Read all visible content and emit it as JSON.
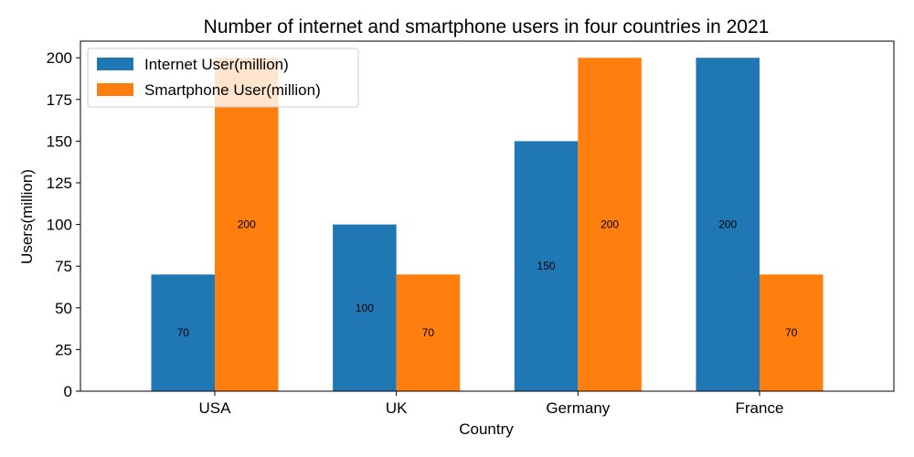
{
  "chart_data": {
    "type": "bar",
    "title": "Number of internet and smartphone users in four countries in 2021",
    "xlabel": "Country",
    "ylabel": "Users(million)",
    "categories": [
      "USA",
      "UK",
      "Germany",
      "France"
    ],
    "series": [
      {
        "name": "Internet User(million)",
        "color": "#1f77b4",
        "values": [
          70,
          100,
          150,
          200
        ]
      },
      {
        "name": "Smartphone User(million)",
        "color": "#ff7f0e",
        "values": [
          200,
          70,
          200,
          70
        ]
      }
    ],
    "ylim": [
      0,
      210
    ],
    "yticks": [
      0,
      25,
      50,
      75,
      100,
      125,
      150,
      175,
      200
    ],
    "grid": false,
    "legend_position": "top-left",
    "data_labels": true
  }
}
